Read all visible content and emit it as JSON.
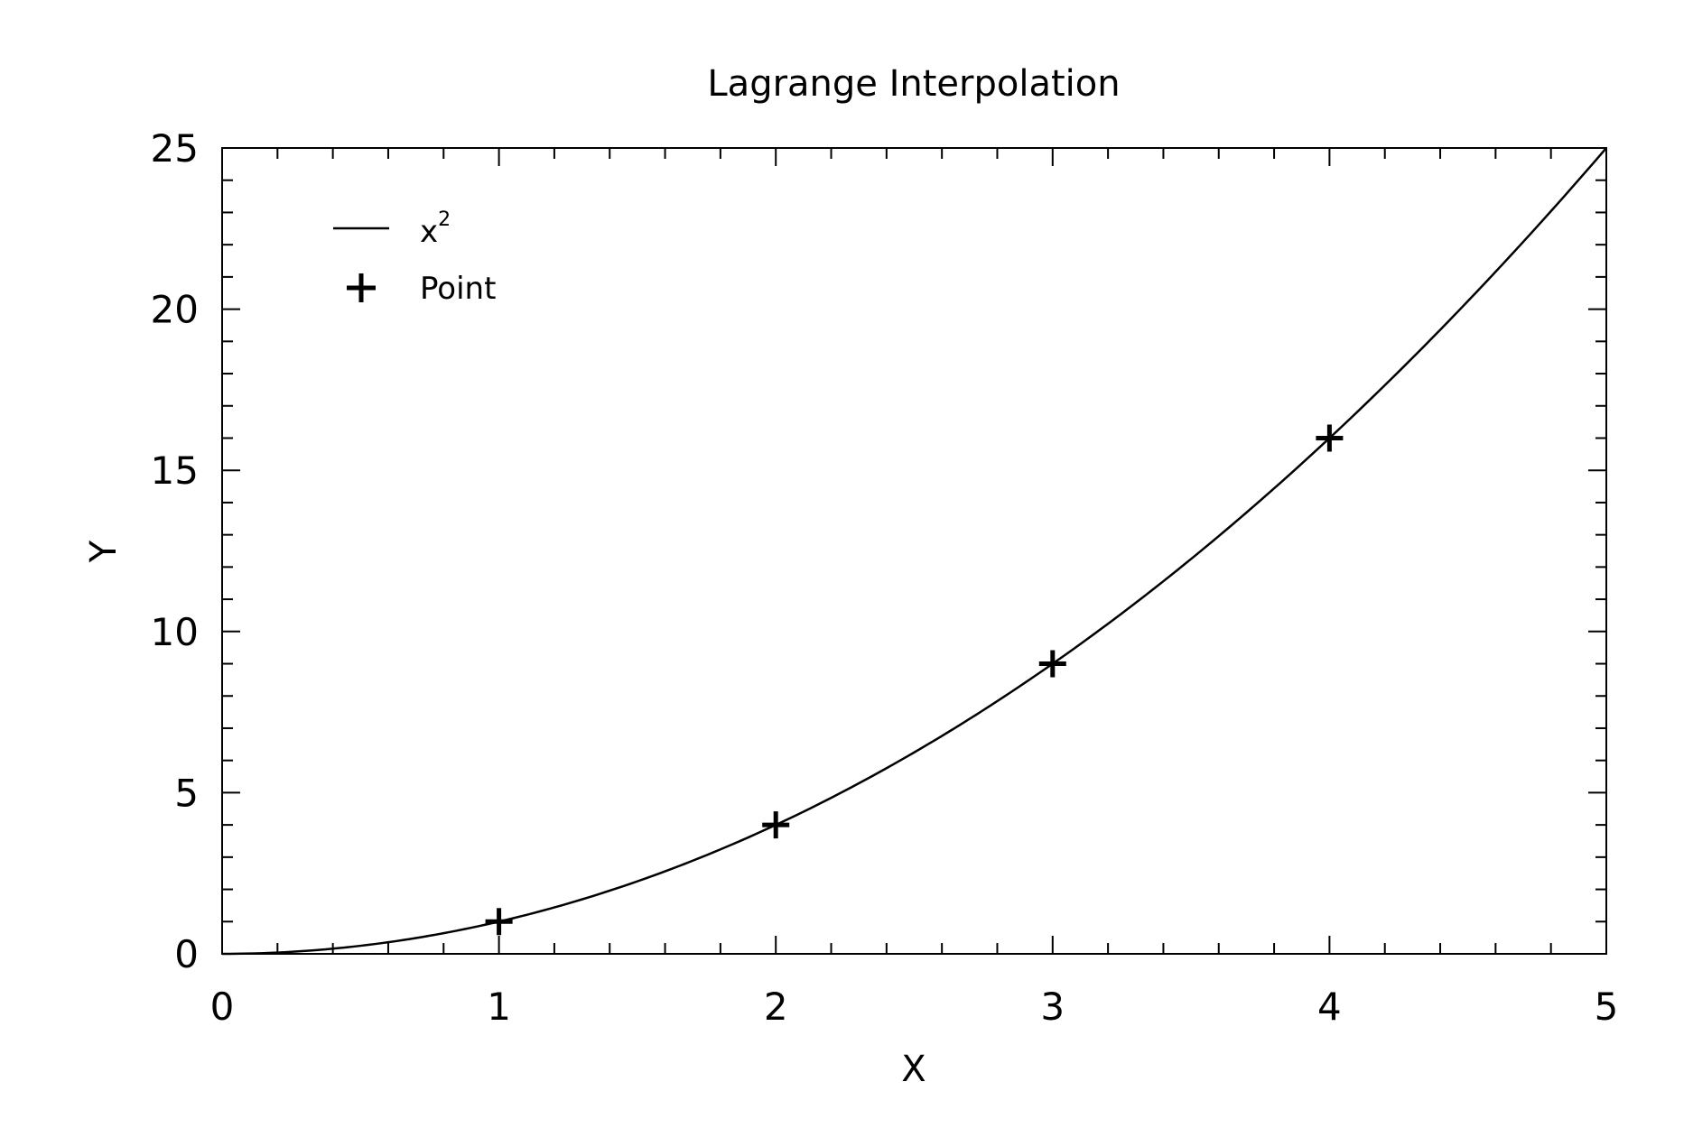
{
  "chart_data": {
    "type": "line",
    "title": "Lagrange Interpolation",
    "xlabel": "X",
    "ylabel": "Y",
    "xlim": [
      0,
      5
    ],
    "ylim": [
      0,
      25
    ],
    "xticks": [
      0,
      1,
      2,
      3,
      4,
      5
    ],
    "xtick_labels": [
      "0",
      "1",
      "2",
      "3",
      "4",
      "5"
    ],
    "yticks": [
      0,
      5,
      10,
      15,
      20,
      25
    ],
    "ytick_labels": [
      "0",
      "5",
      "10",
      "15",
      "20",
      "25"
    ],
    "grid": false,
    "legend_position": "top-left",
    "series": [
      {
        "name": "x",
        "name_superscript": "2",
        "kind": "curve",
        "function": "x^2",
        "x": [
          0,
          0.25,
          0.5,
          0.75,
          1,
          1.25,
          1.5,
          1.75,
          2,
          2.25,
          2.5,
          2.75,
          3,
          3.25,
          3.5,
          3.75,
          4,
          4.25,
          4.5,
          4.75,
          5
        ],
        "y": [
          0,
          0.0625,
          0.25,
          0.5625,
          1,
          1.5625,
          2.25,
          3.0625,
          4,
          5.0625,
          6.25,
          7.5625,
          9,
          10.5625,
          12.25,
          14.0625,
          16,
          18.0625,
          20.25,
          22.5625,
          25
        ]
      },
      {
        "name": "Point",
        "kind": "markers",
        "marker": "plus",
        "x": [
          1,
          2,
          3,
          4
        ],
        "y": [
          1,
          4,
          9,
          16
        ]
      }
    ],
    "colors": {
      "line": "#000000",
      "marker": "#000000"
    }
  }
}
